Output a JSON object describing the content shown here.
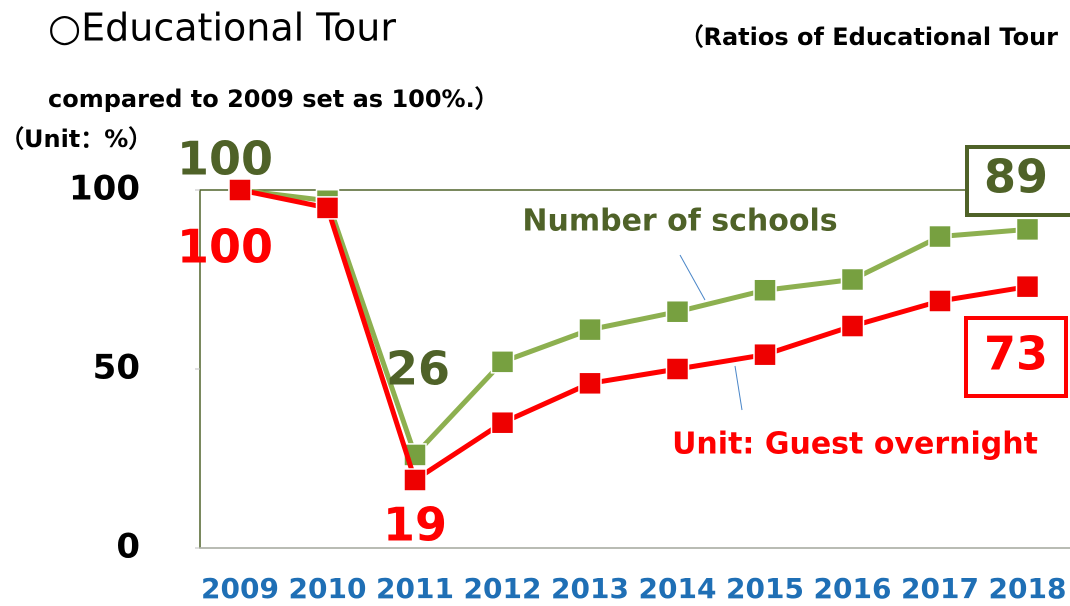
{
  "chart_data": {
    "type": "line",
    "title": "○Educational Tour",
    "subtitle": [
      "（Ratios of Educational Tour",
      "compared to 2009 set as 100%.）"
    ],
    "y_label": "（Unit：%）",
    "categories": [
      "2009",
      "2010",
      "2011",
      "2012",
      "2013",
      "2014",
      "2015",
      "2016",
      "2017",
      "2018"
    ],
    "series": [
      {
        "name": "Number of schools",
        "color": "#8db050",
        "values": [
          100,
          97,
          26,
          52,
          61,
          66,
          72,
          75,
          87,
          89
        ]
      },
      {
        "name": "Unit: Guest overnight",
        "color": "#ff0000",
        "values": [
          100,
          95,
          19,
          35,
          46,
          50,
          54,
          62,
          69,
          73
        ]
      }
    ],
    "ylim": [
      0,
      100
    ],
    "yticks": [
      0,
      50,
      100
    ]
  }
}
